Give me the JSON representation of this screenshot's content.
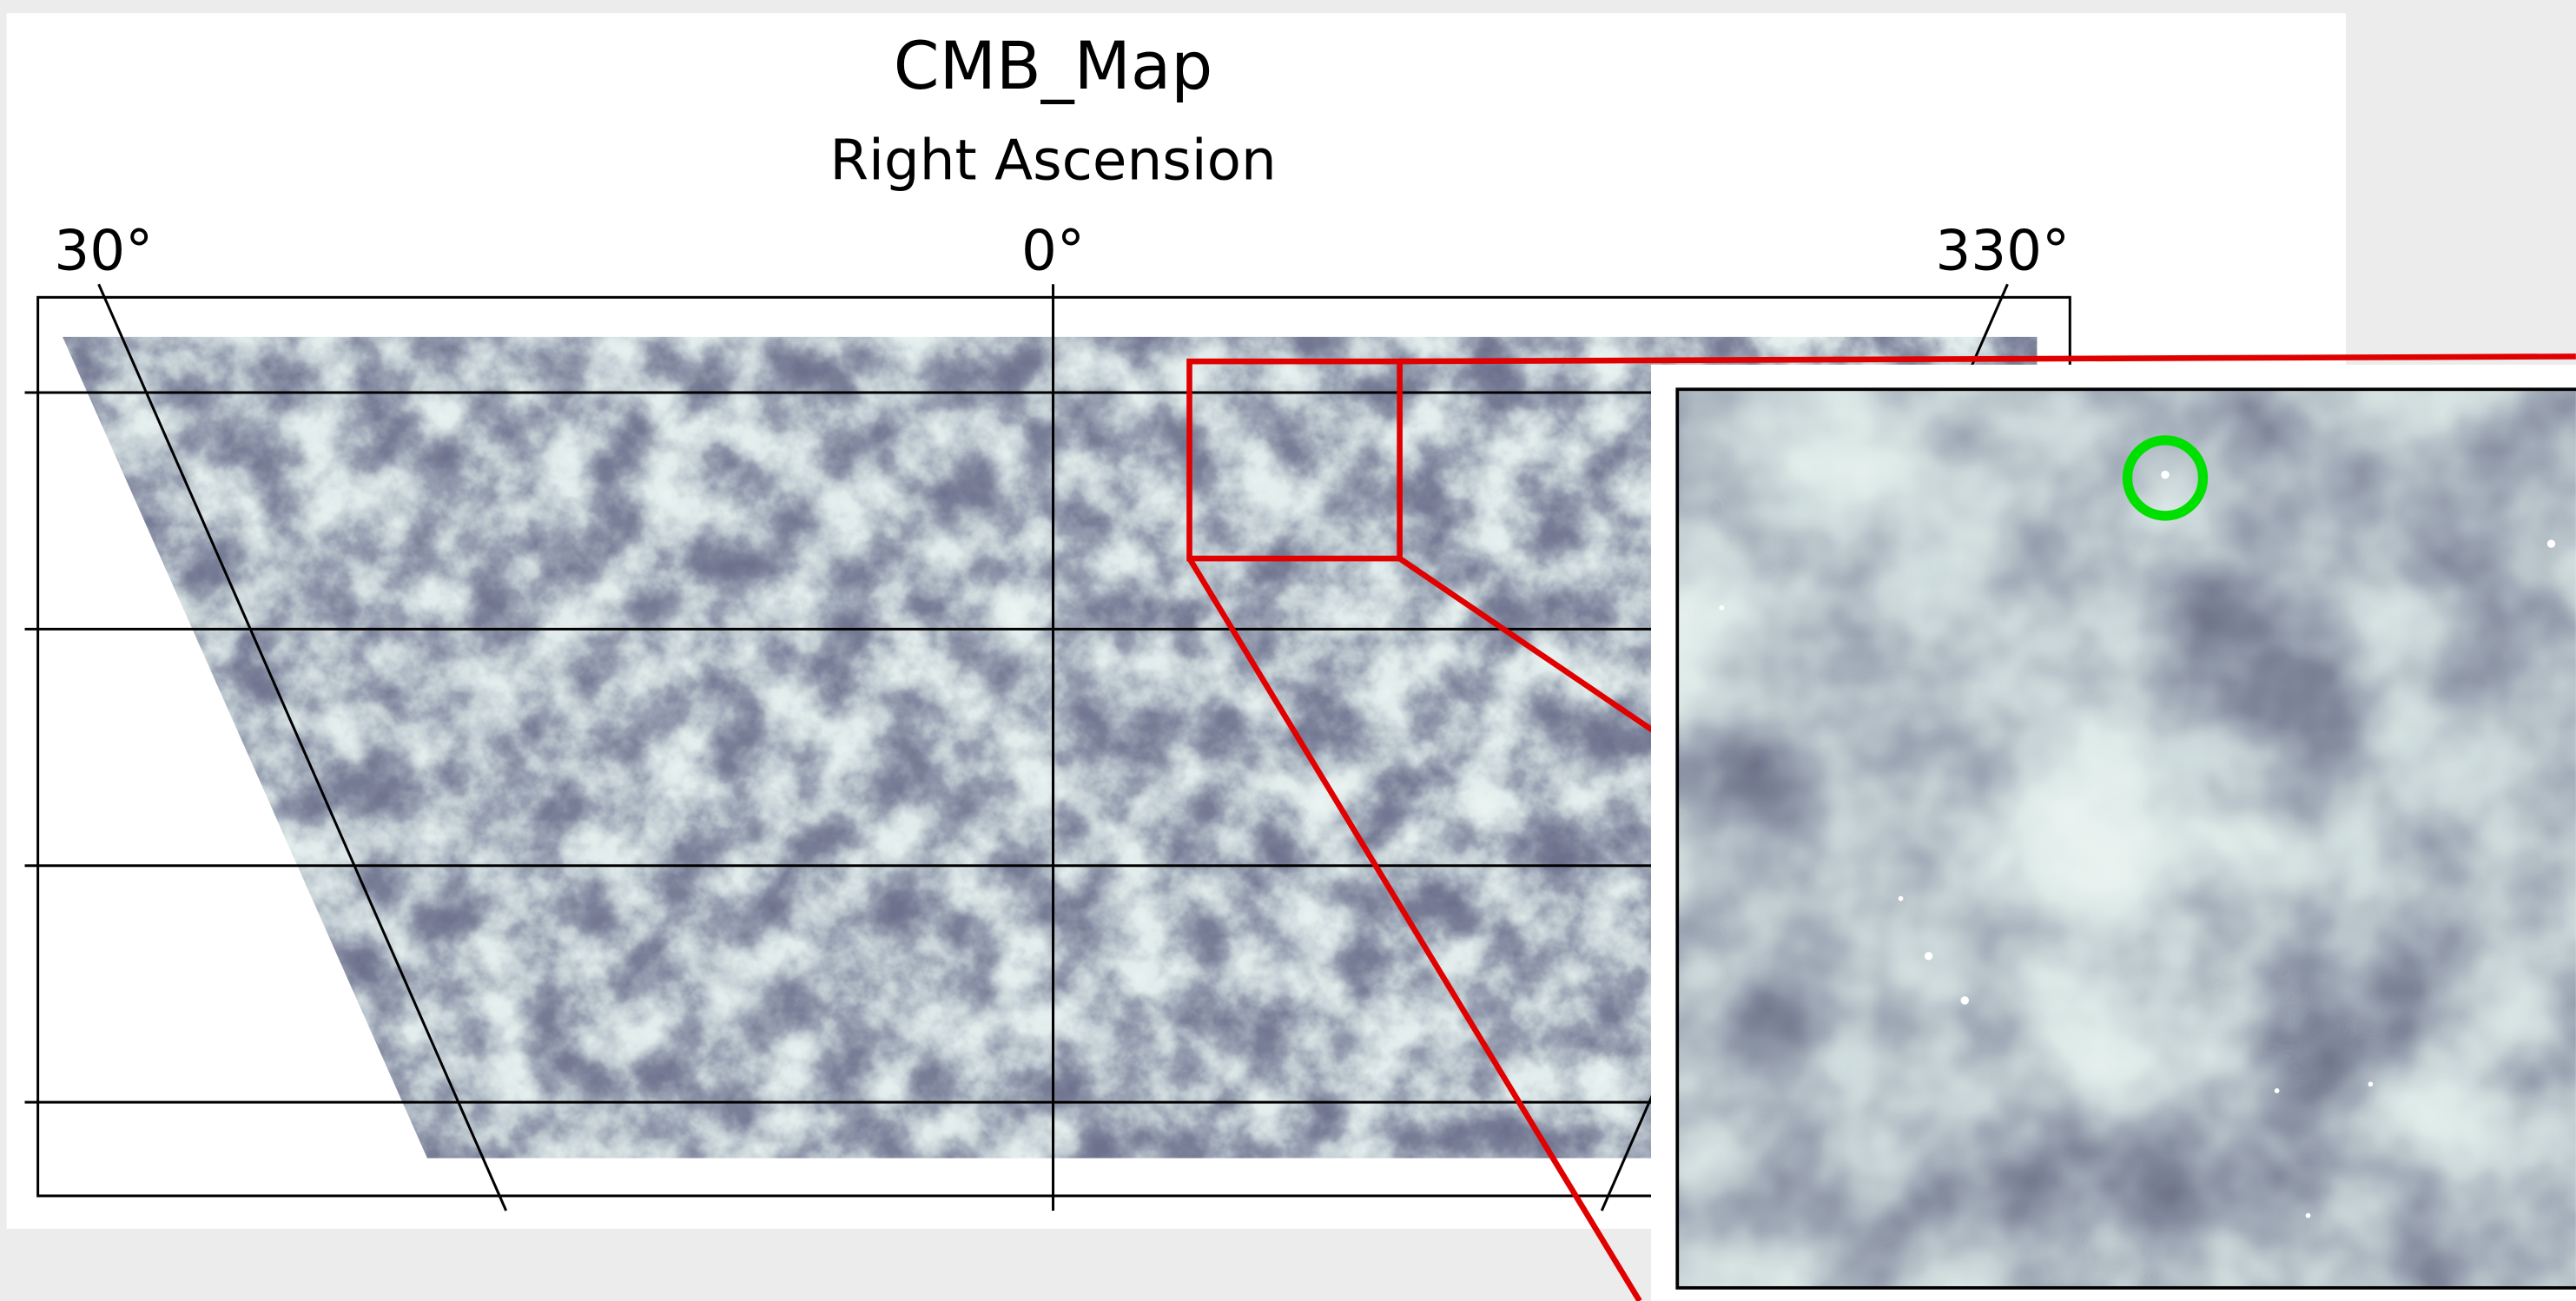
{
  "title": "CMB_Map",
  "axis_label": "Right Ascension",
  "ticks": [
    "30°",
    "0°",
    "330°"
  ]
}
